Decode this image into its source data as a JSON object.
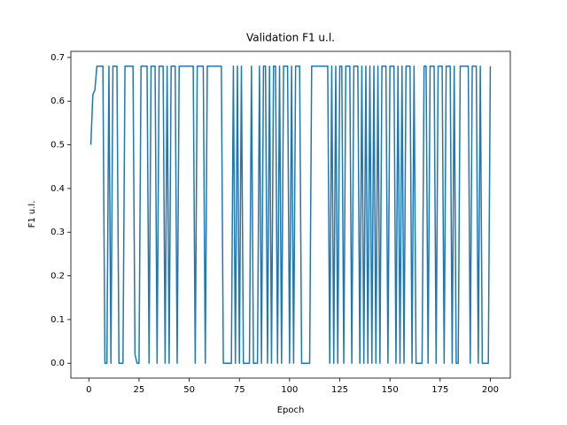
{
  "chart_data": {
    "type": "line",
    "title": "Validation F1 u.l.",
    "x_label": "Epoch",
    "y_label": "F1 u.l.",
    "x": [
      1,
      2,
      3,
      4,
      5,
      6,
      7,
      8,
      9,
      10,
      11,
      12,
      13,
      14,
      15,
      16,
      17,
      18,
      19,
      20,
      21,
      22,
      23,
      24,
      25,
      26,
      27,
      28,
      29,
      30,
      31,
      32,
      33,
      34,
      35,
      36,
      37,
      38,
      39,
      40,
      41,
      42,
      43,
      44,
      45,
      46,
      47,
      48,
      49,
      50,
      51,
      52,
      53,
      54,
      55,
      56,
      57,
      58,
      59,
      60,
      61,
      62,
      63,
      64,
      65,
      66,
      67,
      68,
      69,
      70,
      71,
      72,
      73,
      74,
      75,
      76,
      77,
      78,
      79,
      80,
      81,
      82,
      83,
      84,
      85,
      86,
      87,
      88,
      89,
      90,
      91,
      92,
      93,
      94,
      95,
      96,
      97,
      98,
      99,
      100,
      101,
      102,
      103,
      104,
      105,
      106,
      107,
      108,
      109,
      110,
      111,
      112,
      113,
      114,
      115,
      116,
      117,
      118,
      119,
      120,
      121,
      122,
      123,
      124,
      125,
      126,
      127,
      128,
      129,
      130,
      131,
      132,
      133,
      134,
      135,
      136,
      137,
      138,
      139,
      140,
      141,
      142,
      143,
      144,
      145,
      146,
      147,
      148,
      149,
      150,
      151,
      152,
      153,
      154,
      155,
      156,
      157,
      158,
      159,
      160,
      161,
      162,
      163,
      164,
      165,
      166,
      167,
      168,
      169,
      170,
      171,
      172,
      173,
      174,
      175,
      176,
      177,
      178,
      179,
      180,
      181,
      182,
      183,
      184,
      185,
      186,
      187,
      188,
      189,
      190,
      191,
      192,
      193,
      194,
      195,
      196,
      197,
      198,
      199,
      200
    ],
    "series": [
      {
        "color": "#1f77b4",
        "values": [
          0.5,
          0.615,
          0.625,
          0.68,
          0.68,
          0.68,
          0.68,
          0,
          0,
          0.68,
          0,
          0.68,
          0.68,
          0.68,
          0,
          0,
          0,
          0.68,
          0.68,
          0.68,
          0.68,
          0.68,
          0.02,
          0,
          0,
          0.68,
          0.68,
          0.68,
          0.68,
          0,
          0.68,
          0.68,
          0.68,
          0,
          0.68,
          0.68,
          0.68,
          0,
          0.68,
          0,
          0.68,
          0.68,
          0.68,
          0,
          0.68,
          0.68,
          0.68,
          0.68,
          0.68,
          0.68,
          0.68,
          0.68,
          0,
          0.68,
          0.68,
          0.68,
          0.68,
          0,
          0.68,
          0.68,
          0.68,
          0.68,
          0.68,
          0.68,
          0.68,
          0.68,
          0,
          0,
          0,
          0,
          0,
          0.68,
          0,
          0.68,
          0,
          0.68,
          0,
          0,
          0,
          0,
          0.68,
          0,
          0,
          0,
          0.68,
          0,
          0.68,
          0.68,
          0,
          0.68,
          0,
          0.68,
          0.68,
          0,
          0.68,
          0,
          0.68,
          0.68,
          0.68,
          0,
          0.68,
          0,
          0.68,
          0.68,
          0.68,
          0,
          0,
          0,
          0,
          0,
          0.68,
          0.68,
          0.68,
          0.68,
          0.68,
          0.68,
          0.68,
          0.68,
          0.68,
          0,
          0.68,
          0,
          0.68,
          0,
          0.68,
          0.68,
          0,
          0.68,
          0.68,
          0.68,
          0,
          0.68,
          0.68,
          0.68,
          0,
          0.68,
          0,
          0.68,
          0,
          0.68,
          0,
          0.68,
          0,
          0.68,
          0,
          0.68,
          0.68,
          0.68,
          0,
          0.68,
          0.68,
          0.68,
          0,
          0.68,
          0,
          0.68,
          0,
          0.68,
          0.68,
          0.68,
          0,
          0.68,
          0,
          0,
          0,
          0,
          0.68,
          0.68,
          0,
          0.68,
          0.68,
          0.68,
          0,
          0.68,
          0.68,
          0.68,
          0,
          0.68,
          0.68,
          0.68,
          0,
          0.68,
          0,
          0,
          0.68,
          0.68,
          0.68,
          0.68,
          0.68,
          0,
          0.68,
          0.68,
          0.68,
          0,
          0.68,
          0,
          0,
          0,
          0,
          0.68
        ]
      }
    ],
    "xlim": [
      -8.95,
      209.95
    ],
    "xticks": [
      0,
      25,
      50,
      75,
      100,
      125,
      150,
      175,
      200
    ],
    "ylim": [
      -0.034,
      0.714
    ],
    "yticks": [
      {
        "value": 0,
        "label": "0.0"
      },
      0.1,
      0.2,
      0.3,
      0.4,
      0.5,
      0.6,
      0.7
    ]
  }
}
